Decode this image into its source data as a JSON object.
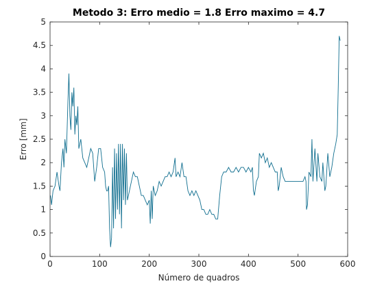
{
  "chart_data": {
    "type": "line",
    "title": "Metodo 3: Erro medio = 1.8 Erro maximo = 4.7",
    "xlabel": "Número de quadros",
    "ylabel": "Erro [mm]",
    "x": [
      1,
      3,
      6,
      10,
      14,
      18,
      20,
      23,
      26,
      28,
      30,
      33,
      36,
      38,
      40,
      42,
      44,
      46,
      48,
      50,
      52,
      54,
      56,
      58,
      62,
      66,
      70,
      74,
      78,
      82,
      86,
      90,
      94,
      98,
      102,
      106,
      110,
      112,
      114,
      116,
      118,
      120,
      122,
      124,
      126,
      128,
      130,
      132,
      134,
      136,
      138,
      140,
      142,
      144,
      146,
      148,
      150,
      152,
      154,
      156,
      160,
      164,
      168,
      172,
      176,
      180,
      184,
      188,
      192,
      196,
      200,
      202,
      204,
      206,
      208,
      212,
      216,
      220,
      224,
      228,
      232,
      236,
      240,
      244,
      248,
      252,
      254,
      258,
      262,
      266,
      270,
      274,
      278,
      282,
      286,
      290,
      294,
      298,
      302,
      306,
      310,
      314,
      318,
      322,
      326,
      330,
      334,
      338,
      342,
      346,
      350,
      355,
      360,
      365,
      370,
      375,
      380,
      385,
      390,
      395,
      400,
      405,
      408,
      410,
      412,
      416,
      420,
      422,
      426,
      430,
      434,
      438,
      442,
      446,
      450,
      454,
      458,
      460,
      462,
      466,
      470,
      474,
      480,
      486,
      492,
      498,
      504,
      510,
      514,
      516,
      517,
      519,
      522,
      526,
      528,
      530,
      534,
      538,
      540,
      544,
      548,
      550,
      554,
      556,
      560,
      564,
      568,
      572,
      576,
      579,
      581,
      583,
      585
    ],
    "series": [
      {
        "name": "Erro",
        "color": "#0e6d8e",
        "values": [
          1.3,
          1.1,
          1.4,
          1.5,
          1.8,
          1.5,
          1.4,
          2.0,
          2.3,
          1.9,
          2.5,
          2.2,
          3.3,
          3.9,
          3.0,
          2.7,
          3.5,
          3.2,
          3.6,
          2.6,
          3.0,
          2.8,
          3.2,
          2.3,
          2.5,
          2.1,
          2.0,
          1.9,
          2.1,
          2.3,
          2.2,
          1.6,
          1.9,
          2.3,
          2.3,
          1.9,
          1.8,
          1.5,
          1.4,
          1.4,
          1.5,
          0.6,
          0.2,
          0.4,
          1.9,
          0.6,
          2.3,
          0.8,
          2.2,
          1.0,
          2.4,
          0.9,
          2.4,
          0.6,
          2.4,
          1.2,
          2.3,
          1.1,
          2.2,
          1.2,
          1.4,
          1.6,
          1.8,
          1.7,
          1.7,
          1.5,
          1.3,
          1.3,
          1.2,
          1.1,
          1.2,
          0.7,
          1.4,
          0.8,
          1.5,
          1.3,
          1.4,
          1.6,
          1.5,
          1.6,
          1.7,
          1.7,
          1.8,
          1.7,
          1.8,
          2.1,
          1.7,
          1.8,
          1.7,
          2.0,
          1.7,
          1.7,
          1.4,
          1.3,
          1.4,
          1.3,
          1.4,
          1.3,
          1.2,
          1.0,
          1.0,
          0.9,
          0.9,
          1.0,
          0.9,
          0.9,
          0.8,
          0.8,
          1.3,
          1.7,
          1.8,
          1.8,
          1.9,
          1.8,
          1.8,
          1.9,
          1.8,
          1.9,
          1.9,
          1.8,
          1.9,
          1.8,
          1.9,
          1.4,
          1.3,
          1.6,
          1.7,
          2.2,
          2.1,
          2.2,
          2.0,
          2.1,
          1.9,
          2.0,
          1.9,
          1.8,
          1.8,
          1.4,
          1.5,
          1.9,
          1.7,
          1.6,
          1.6,
          1.6,
          1.6,
          1.6,
          1.6,
          1.6,
          1.7,
          1.6,
          1.0,
          1.1,
          1.8,
          1.7,
          2.5,
          1.6,
          2.3,
          1.6,
          2.2,
          1.7,
          1.6,
          2.0,
          1.4,
          1.5,
          2.2,
          1.7,
          1.9,
          2.2,
          2.4,
          2.6,
          3.6,
          4.7,
          4.6
        ]
      }
    ],
    "xlim": [
      0,
      600
    ],
    "xticks": [
      0,
      100,
      200,
      300,
      400,
      500,
      600
    ],
    "ylim": [
      0,
      5
    ],
    "yticks": [
      0,
      0.5,
      1,
      1.5,
      2,
      2.5,
      3,
      3.5,
      4,
      4.5,
      5
    ]
  }
}
